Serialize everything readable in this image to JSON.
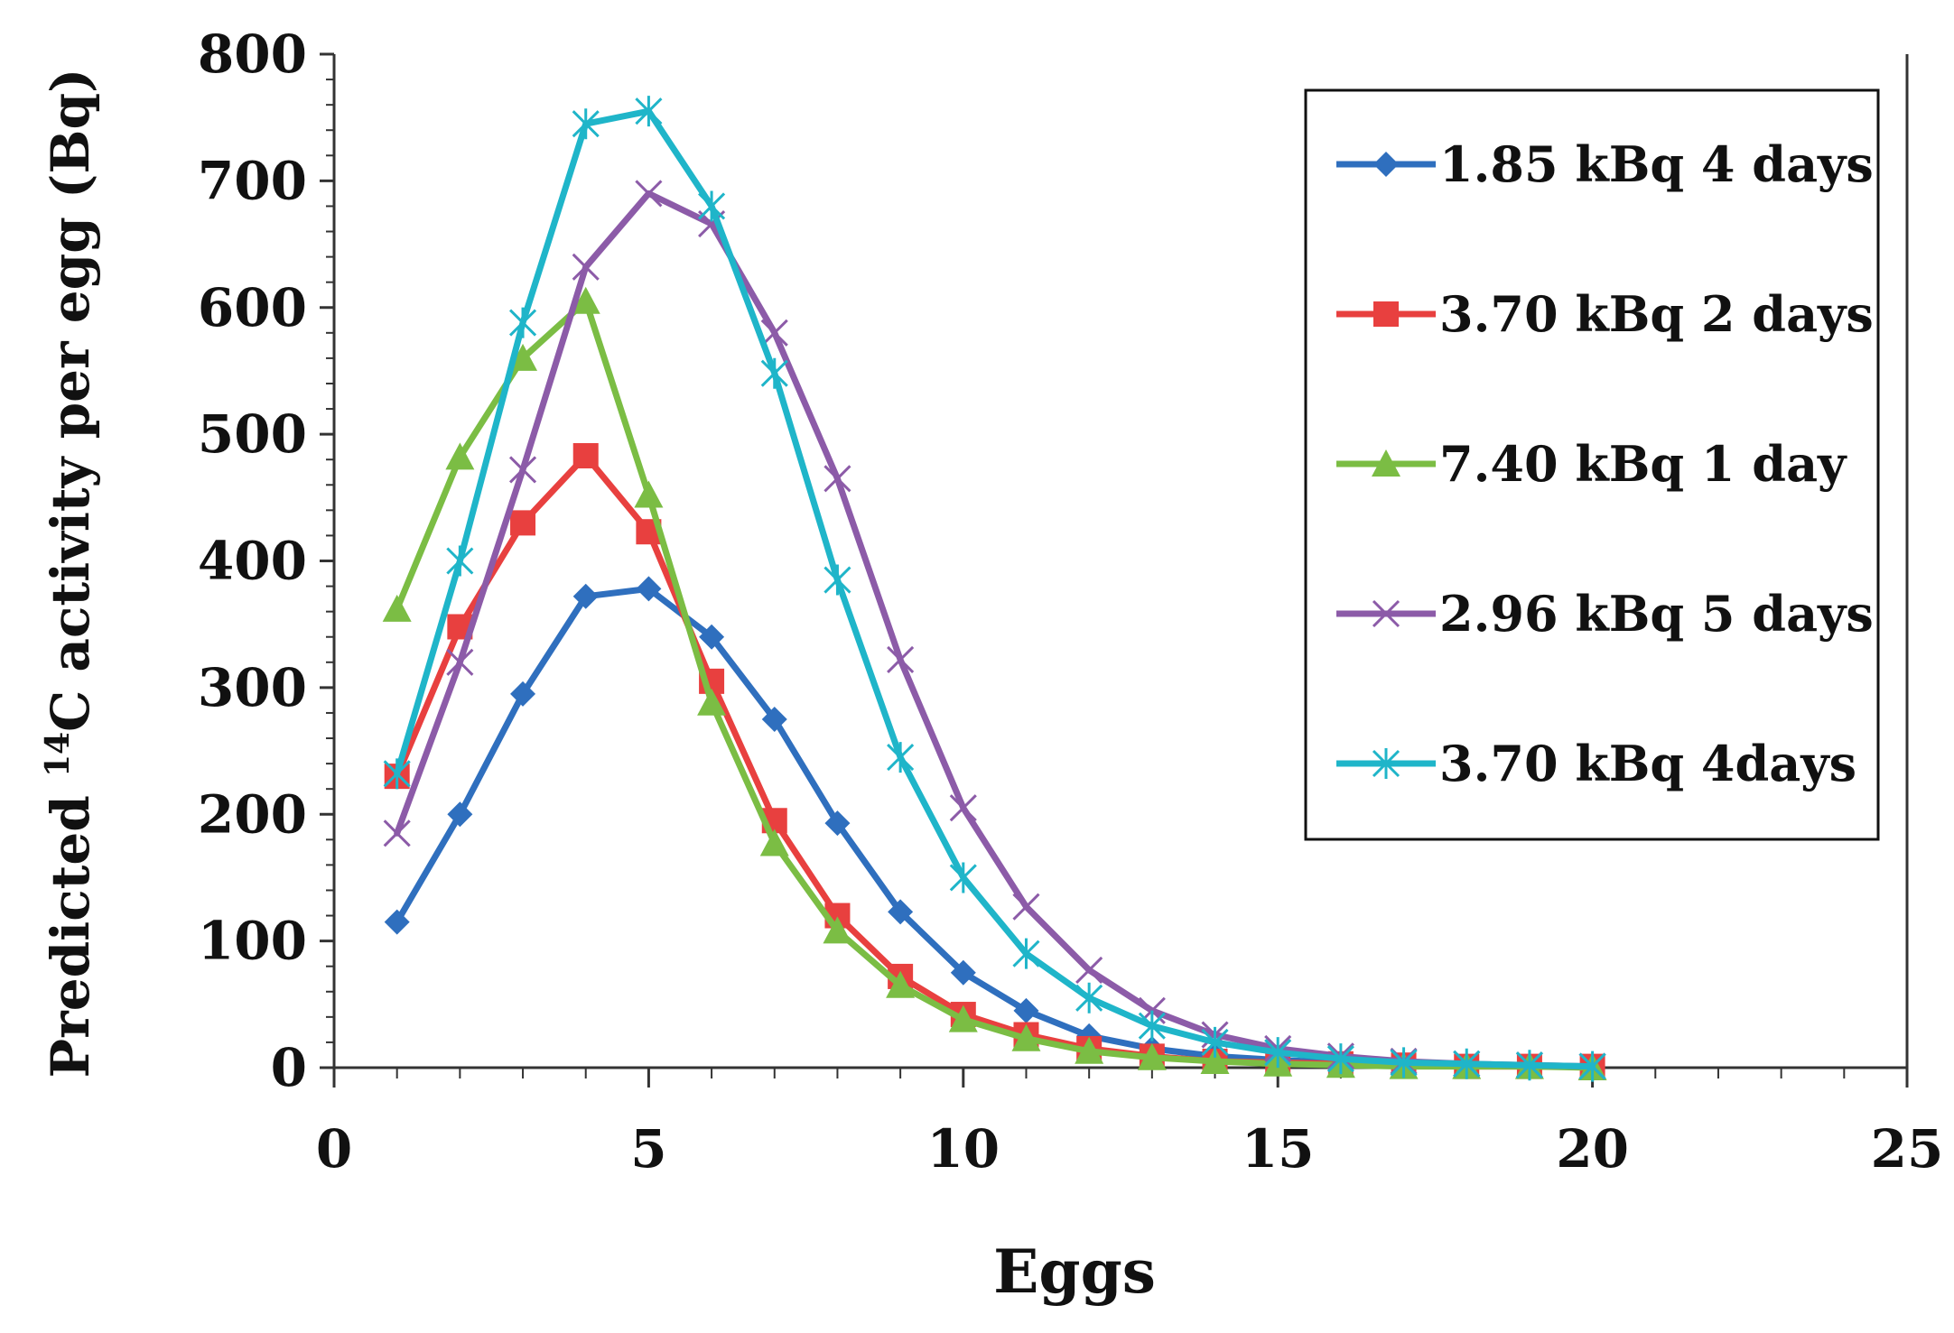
{
  "chart_data": {
    "type": "line",
    "title": "",
    "xlabel": "Eggs",
    "ylabel_prefix": "Predicted ",
    "ylabel_superscript": "14",
    "ylabel_suffix": "C activity per egg (Bq)",
    "xlim": [
      0,
      25
    ],
    "ylim": [
      0,
      800
    ],
    "xticks": [
      0,
      5,
      10,
      15,
      20,
      25
    ],
    "yticks": [
      0,
      100,
      200,
      300,
      400,
      500,
      600,
      700,
      800
    ],
    "grid": false,
    "legend_position": "top-right",
    "x": [
      1,
      2,
      3,
      4,
      5,
      6,
      7,
      8,
      9,
      10,
      11,
      12,
      13,
      14,
      15,
      16,
      17,
      18,
      19,
      20
    ],
    "series": [
      {
        "name": "1.85 kBq 4 days",
        "color": "#2f6fbe",
        "marker": "diamond",
        "values": [
          115,
          200,
          295,
          372,
          378,
          340,
          275,
          193,
          123,
          75,
          45,
          25,
          15,
          9,
          6,
          4,
          3,
          2,
          1,
          1
        ]
      },
      {
        "name": "3.70 kBq 2 days",
        "color": "#e8403f",
        "marker": "square",
        "values": [
          230,
          348,
          430,
          483,
          423,
          305,
          195,
          120,
          72,
          42,
          26,
          15,
          9,
          5,
          4,
          3,
          2,
          1,
          1,
          1
        ]
      },
      {
        "name": "7.40 kBq 1 day",
        "color": "#7bbd44",
        "marker": "triangle",
        "values": [
          362,
          482,
          560,
          605,
          452,
          288,
          177,
          108,
          65,
          38,
          23,
          13,
          8,
          5,
          3,
          2,
          1,
          1,
          1,
          0
        ]
      },
      {
        "name": "2.96 kBq 5 days",
        "color": "#8c5ba8",
        "marker": "x",
        "values": [
          185,
          320,
          472,
          632,
          690,
          666,
          580,
          465,
          322,
          205,
          127,
          77,
          45,
          26,
          15,
          9,
          5,
          3,
          2,
          1
        ]
      },
      {
        "name": "3.70 kBq 4days",
        "color": "#1fb5c9",
        "marker": "asterisk",
        "values": [
          232,
          400,
          588,
          745,
          755,
          680,
          548,
          385,
          245,
          150,
          90,
          55,
          33,
          20,
          12,
          7,
          4,
          3,
          2,
          1
        ]
      }
    ]
  }
}
